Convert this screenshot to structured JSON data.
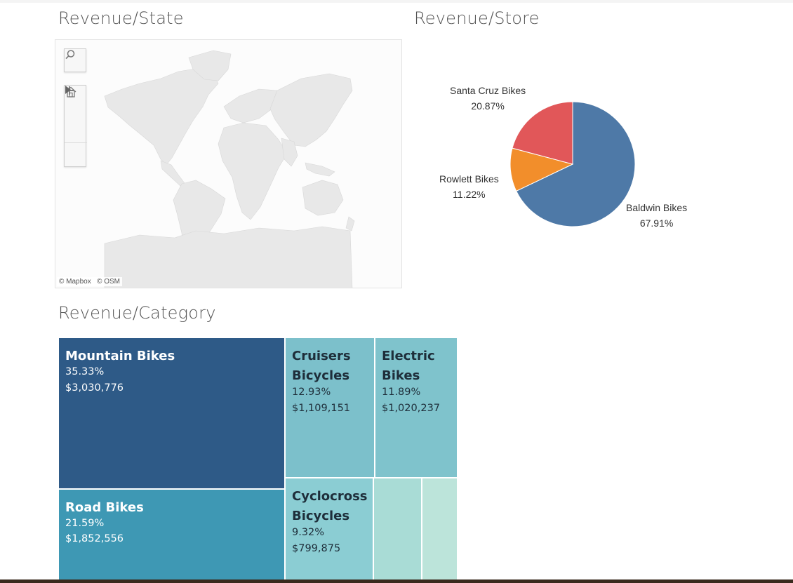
{
  "titles": {
    "state": "Revenue/State",
    "store": "Revenue/Store",
    "category": "Revenue/Category"
  },
  "map": {
    "attribution_mapbox": "© Mapbox",
    "attribution_osm": "© OSM",
    "controls": [
      "search-icon",
      "zoom-in-icon",
      "zoom-out-icon",
      "home-icon",
      "expand-arrow-icon"
    ]
  },
  "pie": {
    "slices": [
      {
        "name": "Baldwin Bikes",
        "pct": "67.91%",
        "value": 67.91,
        "color": "#4e79a7"
      },
      {
        "name": "Rowlett Bikes",
        "pct": "11.22%",
        "value": 11.22,
        "color": "#f28e2b"
      },
      {
        "name": "Santa Cruz Bikes",
        "pct": "20.87%",
        "value": 20.87,
        "color": "#e15759"
      }
    ]
  },
  "treemap": {
    "tiles": [
      {
        "name_lines": [
          "Mountain Bikes"
        ],
        "pct": "35.33%",
        "revenue": "$3,030,776",
        "color": "#2e5a87",
        "text_color": "#ffffff"
      },
      {
        "name_lines": [
          "Road Bikes"
        ],
        "pct": "21.59%",
        "revenue": "$1,852,556",
        "color": "#3e98b4",
        "text_color": "#ffffff"
      },
      {
        "name_lines": [
          "Cruisers",
          "Bicycles"
        ],
        "pct": "12.93%",
        "revenue": "$1,109,151",
        "color": "#7cc0cb",
        "text_color": "#1e2e3a"
      },
      {
        "name_lines": [
          "Electric",
          "Bikes"
        ],
        "pct": "11.89%",
        "revenue": "$1,020,237",
        "color": "#7fc3cc",
        "text_color": "#1e2e3a"
      },
      {
        "name_lines": [
          "Cyclocross",
          "Bicycles"
        ],
        "pct": "9.32%",
        "revenue": "$799,875",
        "color": "#8bcdd3",
        "text_color": "#1e2e3a"
      },
      {
        "name_lines": [],
        "pct": "",
        "revenue": "",
        "color": "#a9dcd6",
        "text_color": "#1e2e3a"
      },
      {
        "name_lines": [],
        "pct": "",
        "revenue": "",
        "color": "#bce4da",
        "text_color": "#1e2e3a"
      }
    ]
  }
}
